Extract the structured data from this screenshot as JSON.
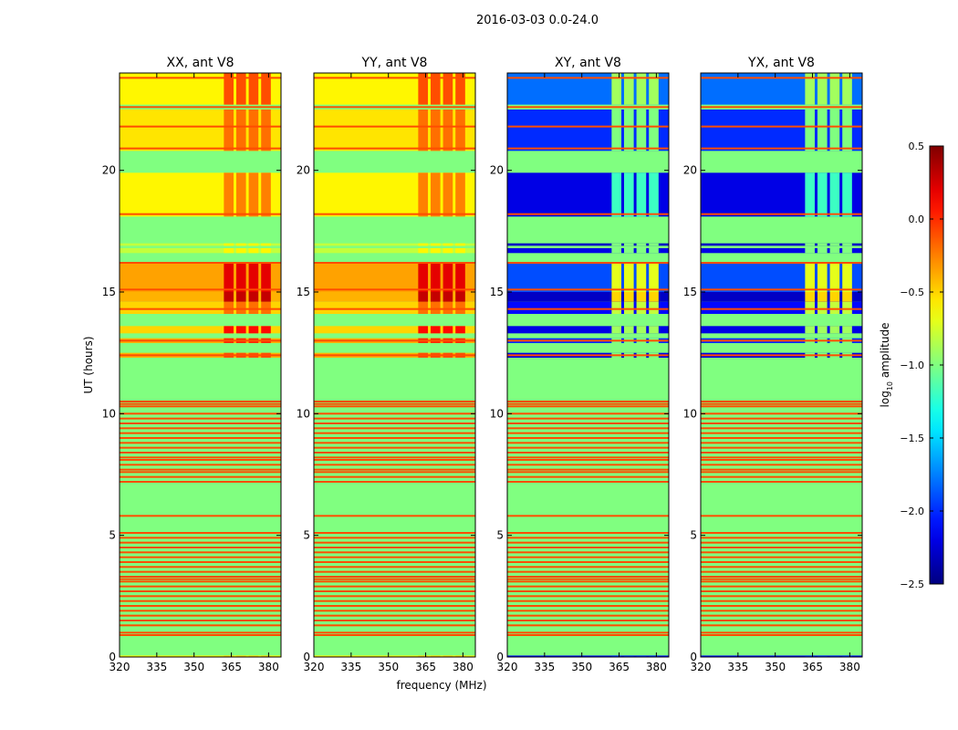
{
  "chart_data": {
    "type": "heatmap",
    "suptitle": "2016-03-03 0.0-24.0",
    "xlabel": "frequency (MHz)",
    "ylabel": "UT (hours)",
    "xlim": [
      320,
      385
    ],
    "ylim": [
      0,
      24
    ],
    "xticks": [
      320,
      335,
      350,
      365,
      380
    ],
    "yticks": [
      0,
      5,
      10,
      15,
      20
    ],
    "rfi_band_mhz": [
      362,
      382
    ],
    "colorbar": {
      "label_prefix": "log",
      "label_sub": "10",
      "label_suffix": " amplitude",
      "range": [
        -2.5,
        0.5
      ],
      "ticks": [
        "0.5",
        "0.0",
        "−0.5",
        "−1.0",
        "−1.5",
        "−2.0",
        "−2.5"
      ],
      "tick_values": [
        0.5,
        0.0,
        -0.5,
        -1.0,
        -1.5,
        -2.0,
        -2.5
      ],
      "colormap": "jet"
    },
    "background_value": -1.0,
    "flag_value": -0.1,
    "flag_lines_hours": [
      0.9,
      1.0,
      1.3,
      1.5,
      1.7,
      1.9,
      2.1,
      2.3,
      2.5,
      2.7,
      2.9,
      3.1,
      3.2,
      3.3,
      3.5,
      3.7,
      3.9,
      4.1,
      4.3,
      4.5,
      4.7,
      4.9,
      5.1,
      5.8,
      7.2,
      7.4,
      7.6,
      7.7,
      7.9,
      8.1,
      8.2,
      8.4,
      8.6,
      8.8,
      9.0,
      9.2,
      9.4,
      9.6,
      9.8,
      10.0,
      10.3,
      10.4,
      10.5,
      12.4,
      13.0,
      14.3,
      15.1,
      16.2,
      18.2,
      20.9,
      21.8,
      22.6,
      23.8
    ],
    "panels": [
      {
        "title": "XX, ant V8",
        "kind": "parallel"
      },
      {
        "title": "YY, ant V8",
        "kind": "parallel"
      },
      {
        "title": "XY, ant V8",
        "kind": "cross"
      },
      {
        "title": "YX, ant V8",
        "kind": "cross"
      }
    ],
    "segments": {
      "parallel": [
        [
          0,
          0.06,
          -0.6,
          -0.5
        ],
        [
          12.3,
          12.5,
          -0.4,
          -0.1
        ],
        [
          12.9,
          13.1,
          -0.4,
          0.0
        ],
        [
          13.3,
          13.6,
          -0.5,
          0.1
        ],
        [
          14.1,
          14.6,
          -0.5,
          -0.2
        ],
        [
          14.6,
          15.0,
          -0.4,
          0.3
        ],
        [
          15.0,
          16.2,
          -0.35,
          0.2
        ],
        [
          16.6,
          16.8,
          -0.8,
          -0.6
        ],
        [
          16.9,
          17.0,
          -0.8,
          -0.6
        ],
        [
          18.1,
          19.9,
          -0.6,
          -0.25
        ],
        [
          20.8,
          22.5,
          -0.55,
          -0.2
        ],
        [
          22.7,
          24,
          -0.6,
          -0.1
        ]
      ],
      "cross": [
        [
          0,
          0.06,
          -2.1,
          -2.0
        ],
        [
          12.3,
          12.5,
          -2.2,
          -1.0
        ],
        [
          12.9,
          13.1,
          -2.0,
          -1.0
        ],
        [
          13.3,
          13.6,
          -2.2,
          -0.9
        ],
        [
          14.1,
          14.6,
          -2.1,
          -0.8
        ],
        [
          14.6,
          15.0,
          -2.3,
          -0.5
        ],
        [
          15.0,
          16.2,
          -1.9,
          -0.7
        ],
        [
          16.6,
          16.8,
          -2.2,
          -1.0
        ],
        [
          16.9,
          17.0,
          -2.3,
          -1.0
        ],
        [
          18.1,
          19.9,
          -2.2,
          -1.2
        ],
        [
          20.8,
          22.5,
          -2.0,
          -1.0
        ],
        [
          22.7,
          24,
          -1.8,
          -0.9
        ]
      ]
    }
  }
}
